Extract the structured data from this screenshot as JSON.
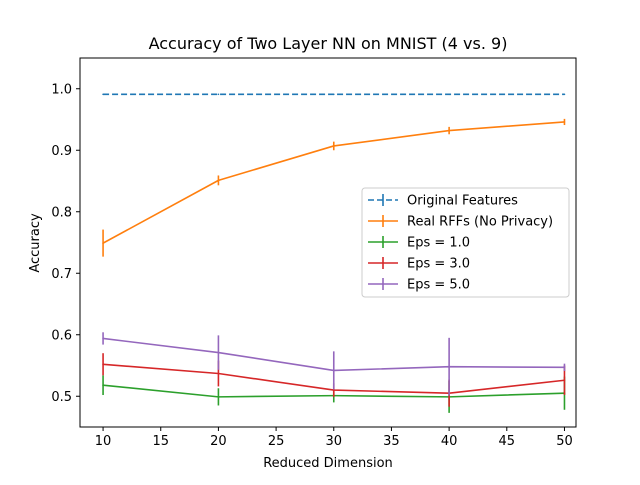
{
  "chart_data": {
    "type": "line",
    "title": "Accuracy of Two Layer NN on MNIST (4 vs. 9)",
    "xlabel": "Reduced Dimension",
    "ylabel": "Accuracy",
    "xlim": [
      8.0,
      51.0
    ],
    "ylim": [
      0.45,
      1.05
    ],
    "xticks": [
      10,
      15,
      20,
      25,
      30,
      35,
      40,
      45,
      50
    ],
    "yticks": [
      0.5,
      0.6,
      0.7,
      0.8,
      0.9,
      1.0
    ],
    "ytick_labels": [
      "0.5",
      "0.6",
      "0.7",
      "0.8",
      "0.9",
      "1.0"
    ],
    "grid": false,
    "legend_position": "center-right",
    "x": [
      10,
      20,
      30,
      40,
      50
    ],
    "series": [
      {
        "name": "Original Features",
        "color": "#1f77b4",
        "linestyle": "dashed",
        "values": [
          0.991,
          0.991,
          0.991,
          0.991,
          0.991
        ],
        "errors": [
          0.0,
          0.0,
          0.0,
          0.0,
          0.0
        ]
      },
      {
        "name": "Real RFFs (No Privacy)",
        "color": "#ff7f0e",
        "linestyle": "solid",
        "values": [
          0.749,
          0.851,
          0.907,
          0.932,
          0.946
        ],
        "errors": [
          0.022,
          0.008,
          0.007,
          0.006,
          0.005
        ]
      },
      {
        "name": "Eps = 1.0",
        "color": "#2ca02c",
        "linestyle": "solid",
        "values": [
          0.518,
          0.499,
          0.501,
          0.499,
          0.505
        ],
        "errors": [
          0.016,
          0.014,
          0.011,
          0.026,
          0.027
        ]
      },
      {
        "name": "Eps = 3.0",
        "color": "#d62728",
        "linestyle": "solid",
        "values": [
          0.552,
          0.537,
          0.51,
          0.505,
          0.526
        ],
        "errors": [
          0.018,
          0.021,
          0.011,
          0.022,
          0.024
        ]
      },
      {
        "name": "Eps = 5.0",
        "color": "#9467bd",
        "linestyle": "solid",
        "values": [
          0.594,
          0.571,
          0.542,
          0.548,
          0.547
        ],
        "errors": [
          0.01,
          0.028,
          0.031,
          0.047,
          0.006
        ]
      }
    ]
  }
}
